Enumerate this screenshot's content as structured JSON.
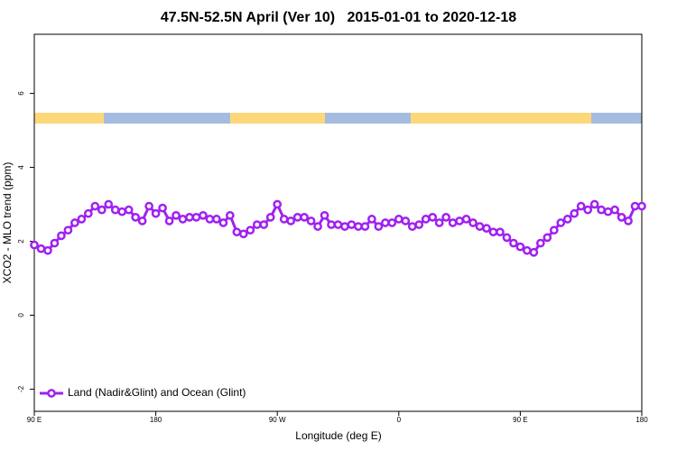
{
  "chart_data": {
    "type": "line",
    "title": "47.5N-52.5N April (Ver 10)   2015-01-01 to 2020-12-18",
    "x_label": "Longitude (deg E)",
    "y_label": "XCO2 - MLO trend (ppm)",
    "xlim": [
      90,
      540
    ],
    "ylim": [
      -2.6,
      7.6
    ],
    "xticks": [
      {
        "value": 90,
        "label": "90 E"
      },
      180,
      {
        "value": 270,
        "label": "90 W"
      },
      {
        "value": 360,
        "label": "0"
      },
      {
        "value": 450,
        "label": "90 E"
      },
      {
        "value": 540,
        "label": "180"
      }
    ],
    "yticks": [
      -2,
      0,
      2,
      4,
      6
    ],
    "legend": "bottom-left",
    "x": [
      90,
      95,
      100,
      105,
      110,
      115,
      120,
      125,
      130,
      135,
      140,
      145,
      150,
      155,
      160,
      165,
      170,
      175,
      180,
      185,
      190,
      195,
      200,
      205,
      210,
      215,
      220,
      225,
      230,
      235,
      240,
      245,
      250,
      255,
      260,
      265,
      270,
      275,
      280,
      285,
      290,
      295,
      300,
      305,
      310,
      315,
      320,
      325,
      330,
      335,
      340,
      345,
      350,
      355,
      360,
      365,
      370,
      375,
      380,
      385,
      390,
      395,
      400,
      405,
      410,
      415,
      420,
      425,
      430,
      435,
      440,
      445,
      450,
      455,
      460,
      465,
      470,
      475,
      480,
      485,
      490,
      495,
      500,
      505,
      510,
      515,
      520,
      525,
      530,
      535,
      540
    ],
    "series": [
      {
        "name": "Land (Nadir&Glint) and Ocean (Glint)",
        "color": "#a020f0",
        "values": [
          1.9,
          1.8,
          1.75,
          1.95,
          2.15,
          2.3,
          2.5,
          2.6,
          2.75,
          2.95,
          2.85,
          3.0,
          2.85,
          2.8,
          2.85,
          2.65,
          2.55,
          2.95,
          2.75,
          2.9,
          2.55,
          2.7,
          2.6,
          2.65,
          2.65,
          2.7,
          2.6,
          2.6,
          2.5,
          2.7,
          2.25,
          2.2,
          2.3,
          2.45,
          2.45,
          2.65,
          3.0,
          2.6,
          2.55,
          2.65,
          2.65,
          2.55,
          2.4,
          2.7,
          2.45,
          2.45,
          2.4,
          2.45,
          2.4,
          2.4,
          2.6,
          2.4,
          2.5,
          2.5,
          2.6,
          2.55,
          2.4,
          2.45,
          2.6,
          2.65,
          2.5,
          2.65,
          2.5,
          2.55,
          2.6,
          2.5,
          2.4,
          2.35,
          2.25,
          2.25,
          2.1,
          1.95,
          1.85,
          1.75,
          1.7,
          1.95,
          2.1,
          2.3,
          2.5,
          2.6,
          2.75,
          2.95,
          2.85,
          3.0,
          2.85,
          2.8,
          2.85,
          2.65,
          2.55,
          2.95,
          2.95
        ]
      }
    ]
  }
}
